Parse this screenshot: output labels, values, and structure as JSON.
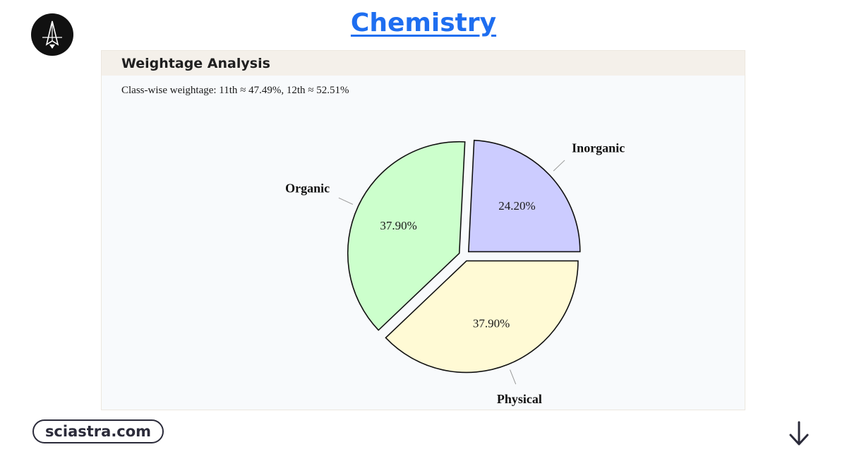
{
  "header": {
    "title": "Chemistry",
    "logo_icon": "rocket-icon"
  },
  "card": {
    "heading": "Weightage Analysis",
    "subtitle": "Class-wise weightage: 11th ≈ 47.49%, 12th ≈ 52.51%"
  },
  "chart_data": {
    "type": "pie",
    "title": "",
    "slices": [
      {
        "label": "Physical",
        "value": 37.9,
        "display": "37.90%",
        "color": "#fffad5"
      },
      {
        "label": "Organic",
        "value": 37.9,
        "display": "37.90%",
        "color": "#ccffcc"
      },
      {
        "label": "Inorganic",
        "value": 24.2,
        "display": "24.20%",
        "color": "#ccccff"
      }
    ],
    "exploded": true,
    "legend": "none"
  },
  "footer": {
    "brand": "sciastra.com",
    "arrow_icon": "arrow-down-icon"
  }
}
